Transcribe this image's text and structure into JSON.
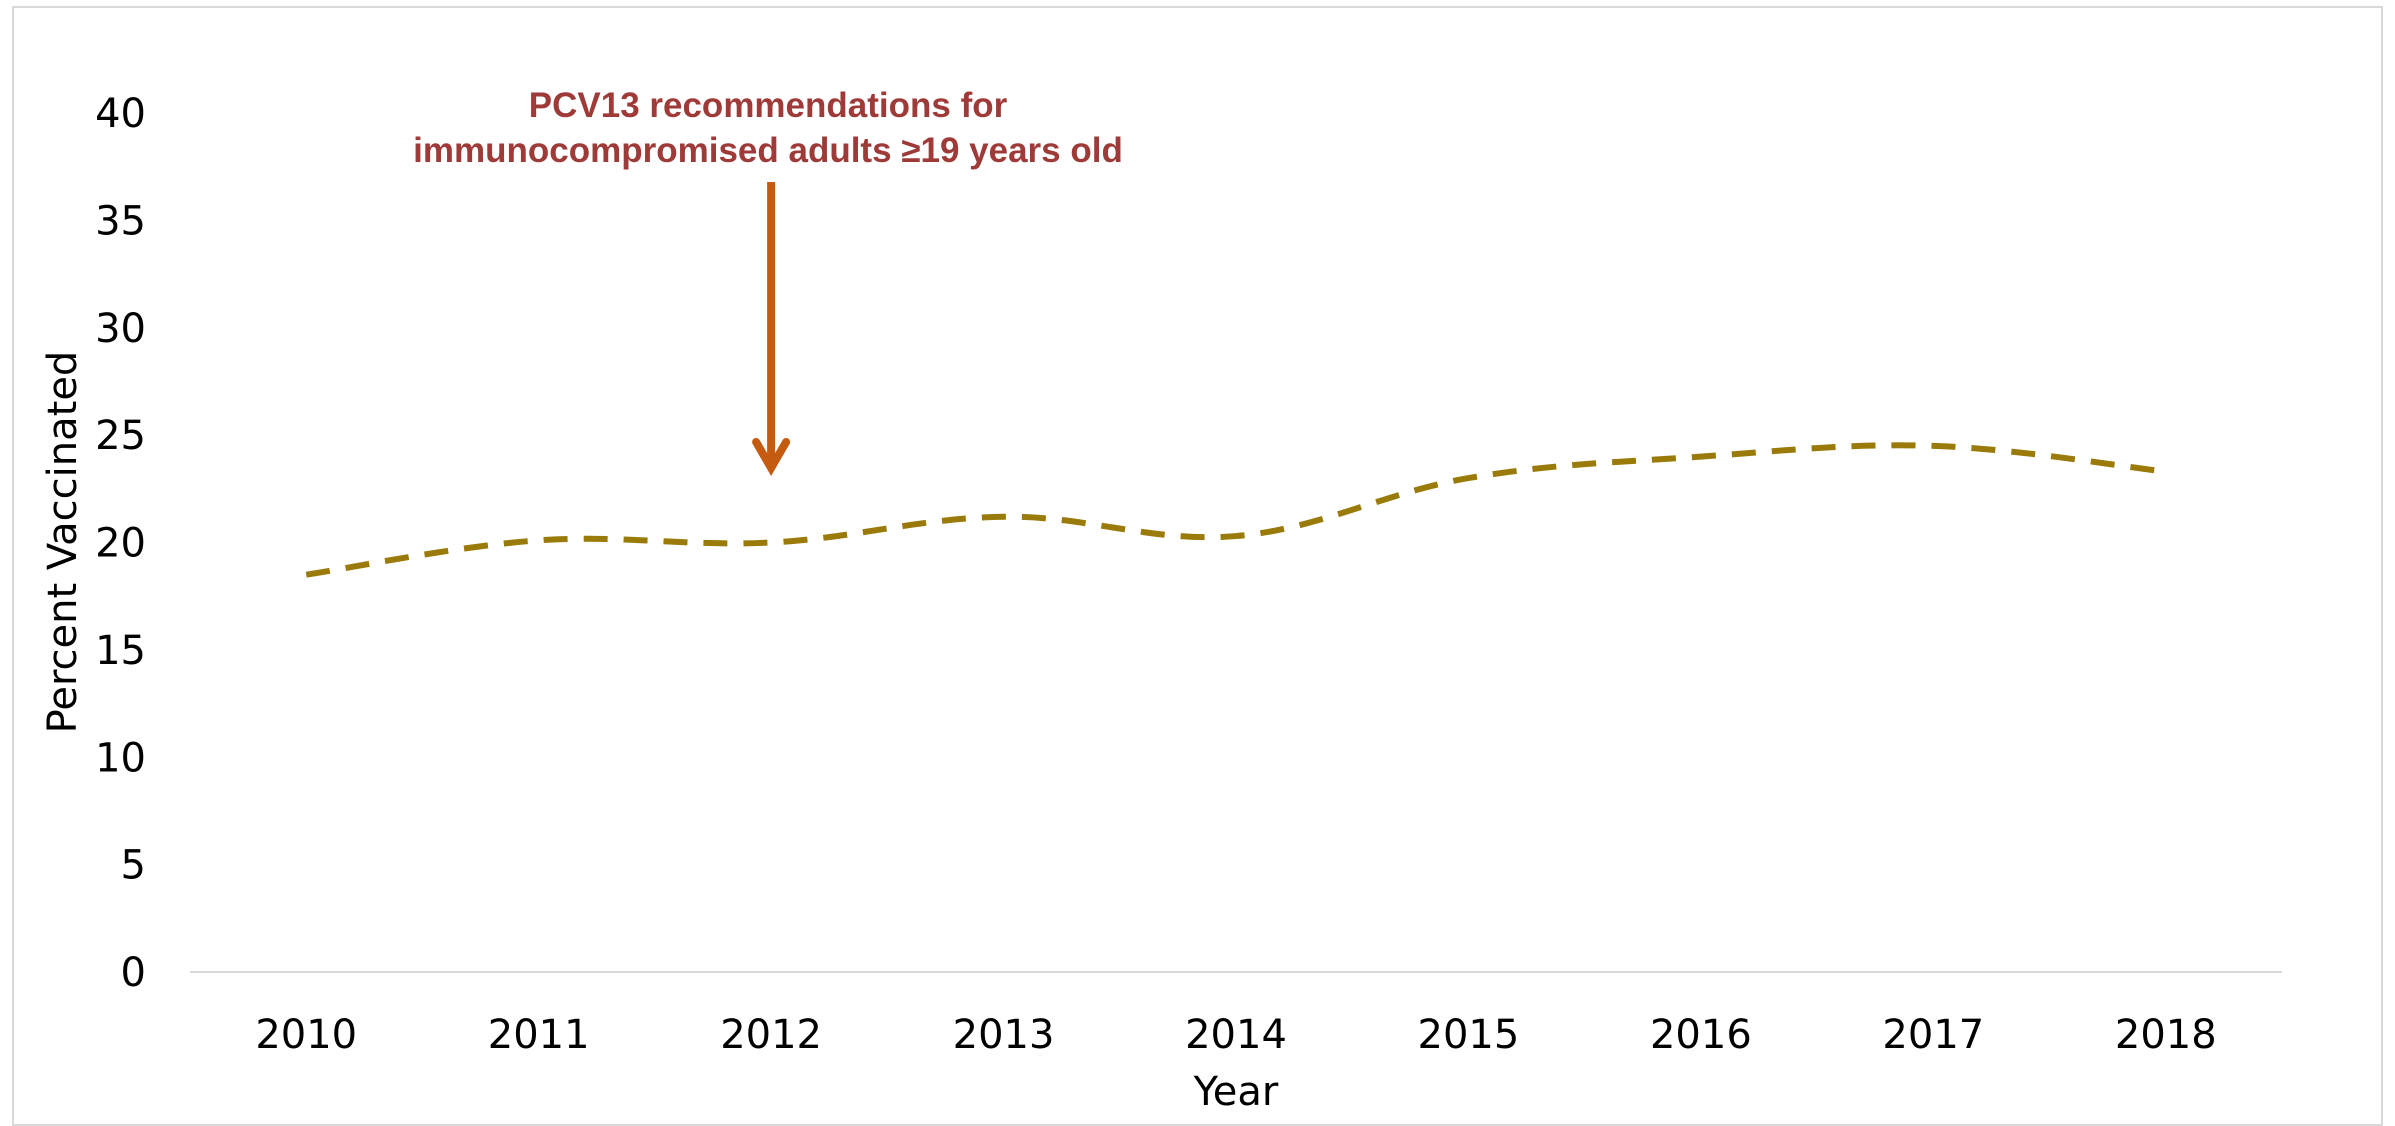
{
  "chart_data": {
    "type": "line",
    "title": "",
    "xlabel": "Year",
    "ylabel": "Percent Vaccinated",
    "x": [
      "2010",
      "2011",
      "2012",
      "2013",
      "2014",
      "2015",
      "2016",
      "2017",
      "2018"
    ],
    "series": [
      {
        "values": [
          18.5,
          20.1,
          20.0,
          21.2,
          20.3,
          23.0,
          24.0,
          24.5,
          23.3
        ],
        "color": "#9a7b0a",
        "line_style": "dashed"
      }
    ],
    "y_ticks": [
      "0",
      "5",
      "10",
      "15",
      "20",
      "25",
      "30",
      "35",
      "40"
    ],
    "ylim": [
      0,
      40
    ],
    "grid": false,
    "annotation": {
      "line1": "PCV13 recommendations for",
      "line2": "immunocompromised adults ≥19 years old",
      "x": "2012",
      "text_color": "#9e3a38",
      "arrow_color": "#c55a11"
    }
  }
}
